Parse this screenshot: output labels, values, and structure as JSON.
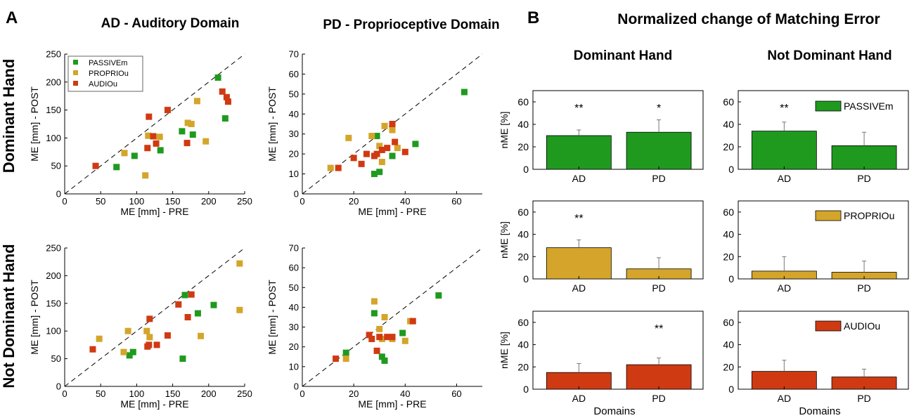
{
  "panel_labels": {
    "a": "A",
    "b": "B"
  },
  "headings": {
    "ad": "AD - Auditory Domain",
    "pd": "PD - Proprioceptive Domain",
    "b_title": "Normalized change of Matching Error",
    "dominant_col": "Dominant Hand",
    "not_dominant_col": "Not Dominant Hand"
  },
  "row_labels": {
    "dominant": "Dominant Hand",
    "not_dominant": "Not Dominant Hand"
  },
  "legend": [
    {
      "label": "PASSIVEm",
      "color": "#1f9a1f"
    },
    {
      "label": "PROPRIOu",
      "color": "#d4a52a"
    },
    {
      "label": "AUDIOu",
      "color": "#d03a12"
    }
  ],
  "colors": {
    "passive": "#1f9a1f",
    "proprio": "#d4a52a",
    "audio": "#d03a12"
  },
  "chart_data": [
    {
      "id": "scatter-ad-dominant",
      "type": "scatter",
      "xlabel": "ME [mm] - PRE",
      "ylabel": "ME [mm] - POST",
      "xlim": [
        0,
        250
      ],
      "ylim": [
        0,
        250
      ],
      "xticks": [
        0,
        50,
        100,
        150,
        200,
        250
      ],
      "yticks": [
        0,
        50,
        100,
        150,
        200,
        250
      ],
      "diagonal": true,
      "series": [
        {
          "name": "PASSIVEm",
          "points": [
            [
              72,
              48
            ],
            [
              97,
              68
            ],
            [
              133,
              78
            ],
            [
              163,
              112
            ],
            [
              178,
              106
            ],
            [
              213,
              208
            ],
            [
              223,
              135
            ]
          ]
        },
        {
          "name": "PROPRIOu",
          "points": [
            [
              83,
              73
            ],
            [
              112,
              33
            ],
            [
              116,
              104
            ],
            [
              132,
              102
            ],
            [
              171,
              127
            ],
            [
              176,
              125
            ],
            [
              184,
              166
            ],
            [
              196,
              94
            ]
          ]
        },
        {
          "name": "AUDIOu",
          "points": [
            [
              43,
              50
            ],
            [
              115,
              82
            ],
            [
              117,
              138
            ],
            [
              123,
              103
            ],
            [
              127,
              90
            ],
            [
              143,
              150
            ],
            [
              170,
              91
            ],
            [
              219,
              183
            ],
            [
              225,
              173
            ],
            [
              227,
              165
            ]
          ]
        }
      ]
    },
    {
      "id": "scatter-pd-dominant",
      "type": "scatter",
      "xlabel": "ME [mm] - PRE",
      "ylabel": "ME [mm] - POST",
      "xlim": [
        0,
        70
      ],
      "ylim": [
        0,
        70
      ],
      "xticks": [
        0,
        20,
        40,
        60
      ],
      "yticks": [
        0,
        10,
        20,
        30,
        40,
        50,
        60,
        70
      ],
      "diagonal": true,
      "series": [
        {
          "name": "PASSIVEm",
          "points": [
            [
              29,
              29
            ],
            [
              28,
              10
            ],
            [
              30,
              11
            ],
            [
              35,
              19
            ],
            [
              44,
              25
            ],
            [
              63,
              51
            ]
          ]
        },
        {
          "name": "PROPRIOu",
          "points": [
            [
              11,
              13
            ],
            [
              18,
              28
            ],
            [
              27,
              29
            ],
            [
              30,
              24
            ],
            [
              31,
              16
            ],
            [
              32,
              34
            ],
            [
              35,
              32
            ],
            [
              37,
              23
            ]
          ]
        },
        {
          "name": "AUDIOu",
          "points": [
            [
              14,
              13
            ],
            [
              20,
              18
            ],
            [
              23,
              15
            ],
            [
              25,
              20
            ],
            [
              28,
              19
            ],
            [
              29,
              20
            ],
            [
              31,
              22
            ],
            [
              33,
              23
            ],
            [
              35,
              35
            ],
            [
              36,
              26
            ],
            [
              40,
              21
            ]
          ]
        }
      ]
    },
    {
      "id": "scatter-ad-not-dominant",
      "type": "scatter",
      "xlabel": "ME [mm] - PRE",
      "ylabel": "ME [mm] - POST",
      "xlim": [
        0,
        250
      ],
      "ylim": [
        0,
        250
      ],
      "xticks": [
        0,
        50,
        100,
        150,
        200,
        250
      ],
      "yticks": [
        0,
        50,
        100,
        150,
        200,
        250
      ],
      "diagonal": true,
      "series": [
        {
          "name": "PASSIVEm",
          "points": [
            [
              90,
              56
            ],
            [
              95,
              62
            ],
            [
              164,
              50
            ],
            [
              167,
              165
            ],
            [
              185,
              132
            ],
            [
              207,
              147
            ]
          ]
        },
        {
          "name": "PROPRIOu",
          "points": [
            [
              48,
              86
            ],
            [
              82,
              62
            ],
            [
              88,
              100
            ],
            [
              114,
              100
            ],
            [
              118,
              89
            ],
            [
              189,
              91
            ],
            [
              243,
              138
            ],
            [
              243,
              222
            ]
          ]
        },
        {
          "name": "AUDIOu",
          "points": [
            [
              39,
              67
            ],
            [
              115,
              72
            ],
            [
              117,
              75
            ],
            [
              118,
              122
            ],
            [
              128,
              75
            ],
            [
              143,
              92
            ],
            [
              158,
              148
            ],
            [
              171,
              125
            ],
            [
              176,
              166
            ]
          ]
        }
      ]
    },
    {
      "id": "scatter-pd-not-dominant",
      "type": "scatter",
      "xlabel": "ME [mm] - PRE",
      "ylabel": "ME [mm] - POST",
      "xlim": [
        0,
        70
      ],
      "ylim": [
        0,
        70
      ],
      "xticks": [
        0,
        20,
        40,
        60
      ],
      "yticks": [
        0,
        10,
        20,
        30,
        40,
        50,
        60,
        70
      ],
      "diagonal": true,
      "series": [
        {
          "name": "PASSIVEm",
          "points": [
            [
              17,
              17
            ],
            [
              28,
              37
            ],
            [
              31,
              15
            ],
            [
              32,
              13
            ],
            [
              39,
              27
            ],
            [
              53,
              46
            ]
          ]
        },
        {
          "name": "PROPRIOu",
          "points": [
            [
              17,
              14
            ],
            [
              28,
              43
            ],
            [
              30,
              29
            ],
            [
              31,
              24
            ],
            [
              32,
              35
            ],
            [
              35,
              24
            ],
            [
              40,
              23
            ],
            [
              42,
              33
            ]
          ]
        },
        {
          "name": "AUDIOu",
          "points": [
            [
              13,
              14
            ],
            [
              26,
              26
            ],
            [
              27,
              24
            ],
            [
              29,
              18
            ],
            [
              30,
              25
            ],
            [
              33,
              25
            ],
            [
              35,
              25
            ],
            [
              43,
              33
            ]
          ]
        }
      ]
    },
    {
      "id": "bar-dominant-passive",
      "type": "bar",
      "group": "Dominant Hand",
      "condition": "PASSIVEm",
      "categories": [
        "AD",
        "PD"
      ],
      "values": [
        30,
        33
      ],
      "errors": [
        5,
        11
      ],
      "significance": [
        "**",
        "*"
      ],
      "ylabel": "nME [%]",
      "xlabel": "",
      "ylim": [
        0,
        70
      ],
      "yticks": [
        0,
        20,
        40,
        60
      ]
    },
    {
      "id": "bar-not-dominant-passive",
      "type": "bar",
      "group": "Not Dominant Hand",
      "condition": "PASSIVEm",
      "categories": [
        "AD",
        "PD"
      ],
      "values": [
        34,
        21
      ],
      "errors": [
        8,
        12
      ],
      "significance": [
        "**",
        ""
      ],
      "ylabel": "",
      "xlabel": "",
      "ylim": [
        0,
        70
      ],
      "yticks": [
        0,
        20,
        40,
        60
      ],
      "legend": "PASSIVEm"
    },
    {
      "id": "bar-dominant-proprio",
      "type": "bar",
      "group": "Dominant Hand",
      "condition": "PROPRIOu",
      "categories": [
        "AD",
        "PD"
      ],
      "values": [
        28,
        9
      ],
      "errors": [
        7,
        10
      ],
      "significance": [
        "**",
        ""
      ],
      "ylabel": "nME [%]",
      "xlabel": "",
      "ylim": [
        0,
        70
      ],
      "yticks": [
        0,
        20,
        40,
        60
      ]
    },
    {
      "id": "bar-not-dominant-proprio",
      "type": "bar",
      "group": "Not Dominant Hand",
      "condition": "PROPRIOu",
      "categories": [
        "AD",
        "PD"
      ],
      "values": [
        7,
        6
      ],
      "errors": [
        13,
        10
      ],
      "significance": [
        "",
        ""
      ],
      "ylabel": "",
      "xlabel": "",
      "ylim": [
        0,
        70
      ],
      "yticks": [
        0,
        20,
        40,
        60
      ],
      "legend": "PROPRIOu"
    },
    {
      "id": "bar-dominant-audio",
      "type": "bar",
      "group": "Dominant Hand",
      "condition": "AUDIOu",
      "categories": [
        "AD",
        "PD"
      ],
      "values": [
        15,
        22
      ],
      "errors": [
        8,
        6
      ],
      "significance": [
        "",
        "**"
      ],
      "ylabel": "nME [%]",
      "xlabel": "Domains",
      "ylim": [
        0,
        70
      ],
      "yticks": [
        0,
        20,
        40,
        60
      ]
    },
    {
      "id": "bar-not-dominant-audio",
      "type": "bar",
      "group": "Not Dominant Hand",
      "condition": "AUDIOu",
      "categories": [
        "AD",
        "PD"
      ],
      "values": [
        16,
        11
      ],
      "errors": [
        10,
        7
      ],
      "significance": [
        "",
        ""
      ],
      "ylabel": "",
      "xlabel": "Domains",
      "ylim": [
        0,
        70
      ],
      "yticks": [
        0,
        20,
        40,
        60
      ],
      "legend": "AUDIOu"
    }
  ]
}
